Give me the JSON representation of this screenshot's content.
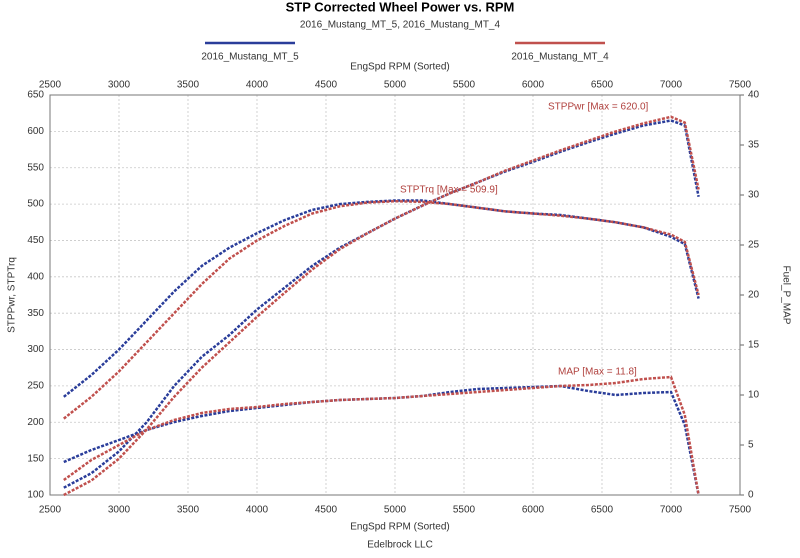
{
  "chart_data": {
    "type": "line",
    "title": "STP Corrected Wheel Power vs. RPM",
    "subtitle": "2016_Mustang_MT_5, 2016_Mustang_MT_4",
    "x_label_top": "EngSpd RPM    (Sorted)",
    "x_label": "EngSpd RPM    (Sorted)",
    "footer": "Edelbrock LLC",
    "y_label": "STPPwr, STPTrq",
    "y2_label": "Fuel_P_MAP",
    "annotations": [
      "STPPwr [Max = 620.0]",
      "STPTrq [Max = 509.9]",
      "MAP    [Max = 11.8]"
    ],
    "x": [
      2600,
      2800,
      3000,
      3200,
      3400,
      3600,
      3800,
      4000,
      4200,
      4400,
      4600,
      4800,
      5000,
      5200,
      5400,
      5600,
      5800,
      6000,
      6200,
      6400,
      6600,
      6800,
      7000,
      7100,
      7200
    ],
    "xlim": [
      2500,
      7500
    ],
    "xticks": [
      2500,
      3000,
      3500,
      4000,
      4500,
      5000,
      5500,
      6000,
      6500,
      7000,
      7500
    ],
    "ylim": [
      100,
      650
    ],
    "yticks": [
      100,
      150,
      200,
      250,
      300,
      350,
      400,
      450,
      500,
      550,
      600,
      650
    ],
    "y2lim": [
      0,
      40
    ],
    "y2ticks": [
      0,
      5,
      10,
      15,
      20,
      25,
      30,
      35,
      40
    ],
    "grid": true,
    "series": [
      {
        "name": "2016_Mustang_MT_5",
        "color": "#2a3d9a",
        "lines": [
          {
            "values": [
              235,
              265,
              300,
              340,
              380,
              415,
              440,
              460,
              478,
              492,
              500,
              503,
              505,
              505,
              500,
              495,
              490,
              487,
              485,
              480,
              475,
              468,
              455,
              445,
              370
            ]
          },
          {
            "values": [
              110,
              130,
              160,
              200,
              250,
              290,
              320,
              355,
              385,
              415,
              440,
              460,
              480,
              498,
              515,
              530,
              545,
              558,
              572,
              585,
              597,
              608,
              615,
              608,
              510
            ]
          },
          {
            "axis": "y2",
            "values": [
              3.3,
              4.5,
              5.5,
              6.5,
              7.3,
              7.9,
              8.4,
              8.7,
              9.0,
              9.3,
              9.5,
              9.6,
              9.7,
              9.9,
              10.3,
              10.6,
              10.7,
              10.8,
              10.9,
              10.4,
              10.0,
              10.2,
              10.3,
              7.0,
              0
            ]
          }
        ]
      },
      {
        "name": "2016_Mustang_MT_4",
        "color": "#c0504d",
        "lines": [
          {
            "values": [
              205,
              235,
              270,
              310,
              350,
              390,
              425,
              450,
              470,
              487,
              497,
              502,
              504,
              503,
              500,
              495,
              490,
              487,
              484,
              480,
              475,
              468,
              458,
              448,
              375
            ]
          },
          {
            "values": [
              100,
              120,
              150,
              190,
              235,
              275,
              310,
              345,
              378,
              410,
              438,
              460,
              480,
              498,
              515,
              530,
              546,
              560,
              574,
              587,
              600,
              611,
              620,
              612,
              520
            ]
          },
          {
            "axis": "y2",
            "values": [
              1.5,
              3.5,
              5.0,
              6.5,
              7.5,
              8.2,
              8.6,
              8.8,
              9.1,
              9.3,
              9.5,
              9.6,
              9.7,
              9.9,
              10.1,
              10.3,
              10.5,
              10.7,
              10.9,
              11.0,
              11.2,
              11.6,
              11.8,
              8.0,
              0
            ]
          }
        ]
      }
    ]
  }
}
